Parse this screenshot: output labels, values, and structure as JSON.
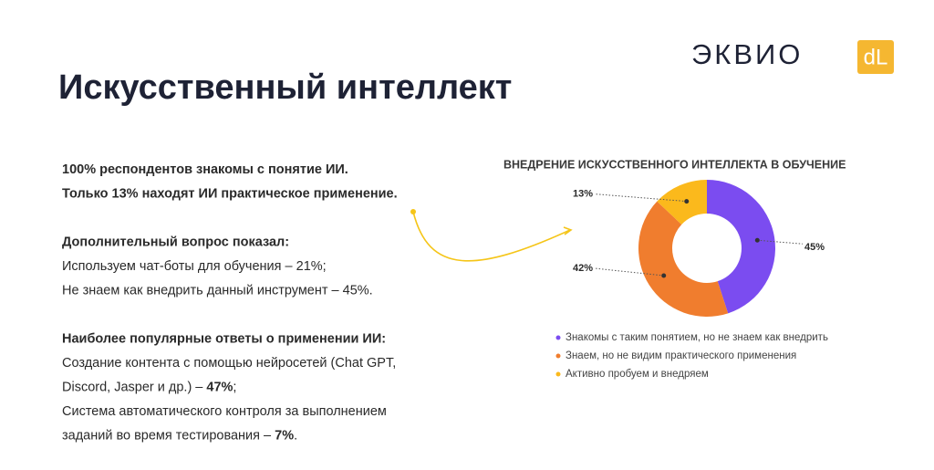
{
  "logo": {
    "text": "ЭКВИО",
    "mark": "dL"
  },
  "title": "Искусственный интеллект",
  "paragraphs": [
    [
      [
        {
          "text": "100% респондентов знакомы с понятие ИИ.",
          "bold": true
        }
      ],
      [
        {
          "text": "Только 13% находят ИИ практическое применение.",
          "bold": true
        }
      ]
    ],
    [
      [
        {
          "text": "Дополнительный вопрос показал:",
          "bold": true
        }
      ],
      [
        {
          "text": "Используем чат-боты для обучения – 21%;"
        }
      ],
      [
        {
          "text": "Не знаем как внедрить данный инструмент – 45%."
        }
      ]
    ],
    [
      [
        {
          "text": "Наиболее популярные ответы о применении ИИ:",
          "bold": true
        }
      ],
      [
        {
          "text": "Создание контента с помощью нейросетей (Chat GPT,"
        }
      ],
      [
        {
          "text": "Discord, Jasper и др.) – "
        },
        {
          "text": "47%",
          "bold": true
        },
        {
          "text": ";"
        }
      ],
      [
        {
          "text": "Система автоматического контроля за выполнением"
        }
      ],
      [
        {
          "text": "заданий во время тестирования – "
        },
        {
          "text": "7%",
          "bold": true
        },
        {
          "text": "."
        }
      ]
    ]
  ],
  "chart_data": {
    "type": "donut",
    "title": "ВНЕДРЕНИЕ ИСКУССТВЕННОГО ИНТЕЛЛЕКТА В ОБУЧЕНИЕ",
    "categories": [
      "Знакомы с таким понятием, но не знаем как внедрить",
      "Знаем, но не видим практического применения",
      "Активно пробуем и внедряем"
    ],
    "values": [
      45,
      42,
      13
    ],
    "value_labels": [
      "45%",
      "42%",
      "13%"
    ],
    "colors": [
      "#7b4cf0",
      "#f07d2e",
      "#fbb91c"
    ]
  }
}
